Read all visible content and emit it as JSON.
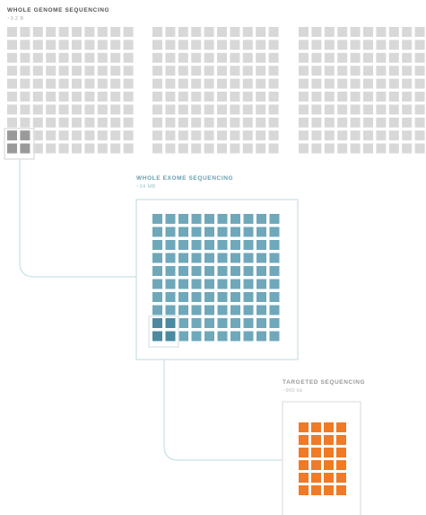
{
  "sections": [
    {
      "title": "WHOLE GENOME SEQUENCING",
      "subtitle": "~3.2 B"
    },
    {
      "title": "WHOLE EXOME SEQUENCING",
      "subtitle": "~34 MB"
    },
    {
      "title": "TARGETED SEQUENCING",
      "subtitle": "~900 kb"
    }
  ]
}
